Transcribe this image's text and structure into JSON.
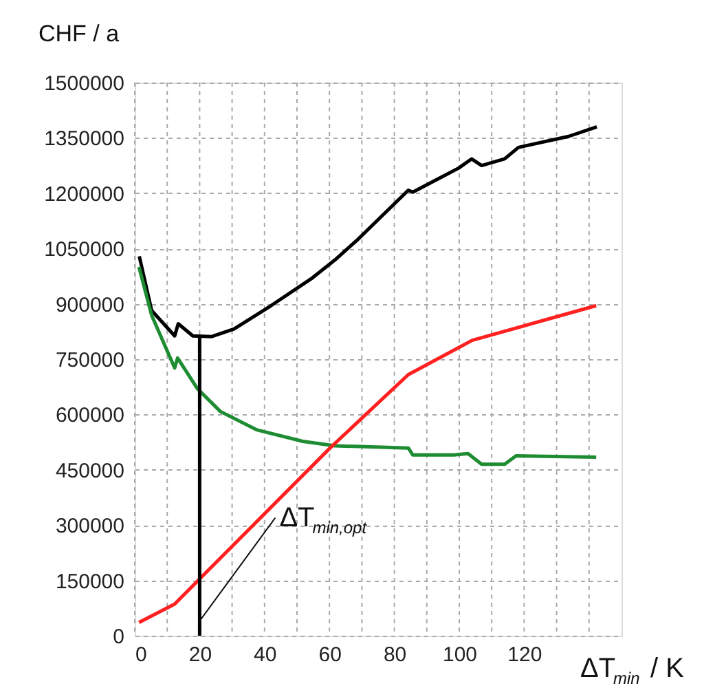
{
  "chart_data": {
    "type": "line",
    "xlabel": "ΔT$_{min}$ / K",
    "ylabel": "CHF / a",
    "series": [
      {
        "color": "#000000",
        "x": [
          1.4,
          5.2,
          12.3,
          13.4,
          17.9,
          23.6,
          30.6,
          42,
          54.7,
          61.7,
          68.8,
          84.3,
          85.7,
          99.8,
          103.8,
          106.9,
          114,
          118.2,
          133.7,
          142.4
        ],
        "values": [
          1029000,
          882000,
          813000,
          846000,
          813000,
          811000,
          832000,
          895000,
          970000,
          1019000,
          1075000,
          1208000,
          1203000,
          1268000,
          1293000,
          1275000,
          1293000,
          1324000,
          1354000,
          1380000
        ]
      },
      {
        "color": "#1e8c32",
        "x": [
          1.3,
          5.2,
          12.3,
          13.2,
          19.3,
          26.4,
          37.7,
          51.8,
          61.7,
          84.3,
          85.7,
          98.4,
          102.7,
          106.9,
          114,
          117.5,
          142.2
        ],
        "values": [
          1000000,
          869000,
          726000,
          753000,
          670000,
          608000,
          558000,
          527000,
          515000,
          509000,
          490000,
          490000,
          494000,
          465000,
          465000,
          488000,
          484000
        ]
      },
      {
        "color": "#ff2020",
        "x": [
          1.3,
          12.3,
          19.3,
          60.3,
          84.3,
          104,
          142.2
        ],
        "values": [
          36000,
          86000,
          148000,
          510000,
          708000,
          801000,
          895000
        ]
      },
      {
        "color": "#000000",
        "x": [
          20,
          20
        ],
        "values": [
          0,
          811000
        ]
      }
    ],
    "annotations": [
      {
        "text": "ΔT$_{min,opt}$",
        "x": 20,
        "y": 40000
      }
    ],
    "xlim": [
      0,
      150
    ],
    "ylim": [
      0,
      1500000
    ],
    "xticks": [
      0,
      {
        "value": 10,
        "label": null
      },
      20,
      {
        "value": 30,
        "label": null
      },
      40,
      {
        "value": 50,
        "label": null
      },
      60,
      {
        "value": 70,
        "label": null
      },
      80,
      {
        "value": 90,
        "label": null
      },
      100,
      {
        "value": 110,
        "label": null
      },
      120,
      {
        "value": 130,
        "label": null
      },
      {
        "value": 140,
        "label": null
      }
    ],
    "yticks": [
      0,
      150000,
      300000,
      450000,
      600000,
      750000,
      900000,
      1050000,
      1200000,
      1350000,
      1500000
    ],
    "grid": true,
    "marker": "none",
    "line_style": "solid"
  }
}
